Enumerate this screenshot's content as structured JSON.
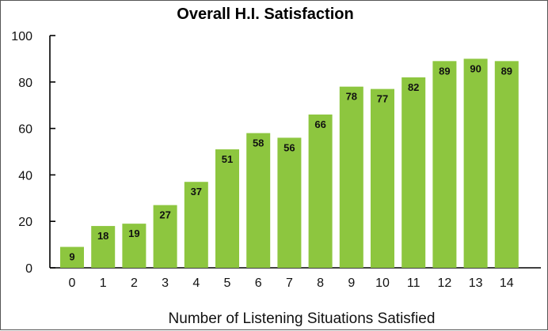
{
  "chart_data": {
    "type": "bar",
    "title": "Overall H.I. Satisfaction",
    "xlabel": "Number of Listening Situations Satisfied",
    "ylabel": "",
    "categories": [
      "0",
      "1",
      "2",
      "3",
      "4",
      "5",
      "6",
      "7",
      "8",
      "9",
      "10",
      "11",
      "12",
      "13",
      "14"
    ],
    "values": [
      9,
      18,
      19,
      27,
      37,
      51,
      58,
      56,
      66,
      78,
      77,
      82,
      89,
      90,
      89
    ],
    "ylim": [
      0,
      100
    ],
    "yticks": [
      "0",
      "20",
      "40",
      "60",
      "80",
      "100"
    ],
    "grid": false,
    "bar_color": "#8dc63f",
    "data_labels": true
  }
}
